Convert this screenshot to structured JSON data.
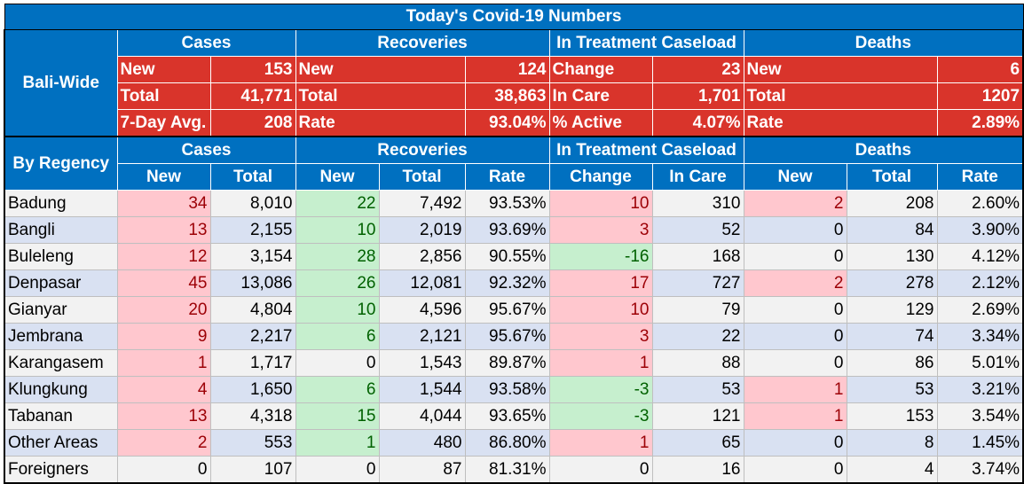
{
  "title": "Today's Covid-19 Numbers",
  "bali_wide": {
    "label": "Bali-Wide",
    "sections": [
      "Cases",
      "Recoveries",
      "In Treatment Caseload",
      "Deaths"
    ],
    "rows": [
      [
        [
          "New",
          "153"
        ],
        [
          "New",
          "124"
        ],
        [
          "Change",
          "23"
        ],
        [
          "New",
          "6"
        ]
      ],
      [
        [
          "Total",
          "41,771"
        ],
        [
          "Total",
          "38,863"
        ],
        [
          "In Care",
          "1,701"
        ],
        [
          "Total",
          "1207"
        ]
      ],
      [
        [
          "7-Day Avg.",
          "208"
        ],
        [
          "Rate",
          "93.04%"
        ],
        [
          "% Active",
          "4.07%"
        ],
        [
          "Rate",
          "2.89%"
        ]
      ]
    ]
  },
  "by_regency": {
    "label": "By Regency",
    "sections": [
      "Cases",
      "Recoveries",
      "In Treatment Caseload",
      "Deaths"
    ],
    "columns": [
      "New",
      "Total",
      "New",
      "Total",
      "Rate",
      "Change",
      "In Care",
      "New",
      "Total",
      "Rate"
    ],
    "rows": [
      {
        "name": "Badung",
        "values": [
          "34",
          "8,010",
          "22",
          "7,492",
          "93.53%",
          "10",
          "310",
          "2",
          "208",
          "2.60%"
        ]
      },
      {
        "name": "Bangli",
        "values": [
          "13",
          "2,155",
          "10",
          "2,019",
          "93.69%",
          "3",
          "52",
          "0",
          "84",
          "3.90%"
        ]
      },
      {
        "name": "Buleleng",
        "values": [
          "12",
          "3,154",
          "28",
          "2,856",
          "90.55%",
          "-16",
          "168",
          "0",
          "130",
          "4.12%"
        ]
      },
      {
        "name": "Denpasar",
        "values": [
          "45",
          "13,086",
          "26",
          "12,081",
          "92.32%",
          "17",
          "727",
          "2",
          "278",
          "2.12%"
        ]
      },
      {
        "name": "Gianyar",
        "values": [
          "20",
          "4,804",
          "10",
          "4,596",
          "95.67%",
          "10",
          "79",
          "0",
          "129",
          "2.69%"
        ]
      },
      {
        "name": "Jembrana",
        "values": [
          "9",
          "2,217",
          "6",
          "2,121",
          "95.67%",
          "3",
          "22",
          "0",
          "74",
          "3.34%"
        ]
      },
      {
        "name": "Karangasem",
        "values": [
          "1",
          "1,717",
          "0",
          "1,543",
          "89.87%",
          "1",
          "88",
          "0",
          "86",
          "5.01%"
        ]
      },
      {
        "name": "Klungkung",
        "values": [
          "4",
          "1,650",
          "6",
          "1,544",
          "93.58%",
          "-3",
          "53",
          "1",
          "53",
          "3.21%"
        ]
      },
      {
        "name": "Tabanan",
        "values": [
          "13",
          "4,318",
          "15",
          "4,044",
          "93.65%",
          "-3",
          "121",
          "1",
          "153",
          "3.54%"
        ]
      },
      {
        "name": "Other Areas",
        "values": [
          "2",
          "553",
          "1",
          "480",
          "86.80%",
          "1",
          "65",
          "0",
          "8",
          "1.45%"
        ]
      },
      {
        "name": "Foreigners",
        "values": [
          "0",
          "107",
          "0",
          "87",
          "81.31%",
          "0",
          "16",
          "0",
          "4",
          "3.74%"
        ]
      }
    ]
  },
  "colors": {
    "header_blue": "#0070c0",
    "summary_red": "#d9342b",
    "increase_fill": "#ffc7ce",
    "increase_text": "#9c0006",
    "decrease_fill": "#c6efce",
    "decrease_text": "#006100",
    "stripe_a": "#f2f2f2",
    "stripe_b": "#d9e1f2"
  }
}
